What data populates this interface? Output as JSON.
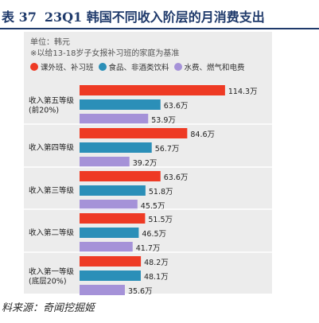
{
  "figure": {
    "label": "表 37",
    "title": "23Q1 韩国不同收入阶层的月消费支出"
  },
  "unit_text": "单位：韩元",
  "note_text": "※以给13-18岁子女报补习班的家庭为基准",
  "source": {
    "label": "料来源：",
    "text": "奇闻挖掘姬"
  },
  "colors": {
    "tutoring": "#ee3a24",
    "food": "#2b8fb8",
    "utilities": "#a592d8"
  },
  "chart_data": {
    "type": "bar",
    "orientation": "horizontal",
    "categories": [
      [
        "收入第五等级",
        "(前20%)"
      ],
      [
        "收入第四等级"
      ],
      [
        "收入第三等级"
      ],
      [
        "收入第二等级"
      ],
      [
        "收入第一等级",
        "(底层20%)"
      ]
    ],
    "series": [
      {
        "name": "课外班、补习班",
        "values": [
          114.3,
          84.6,
          63.6,
          51.5,
          48.2
        ],
        "labels": [
          "114.3万",
          "84.6万",
          "63.6万",
          "51.5万",
          "48.2万"
        ]
      },
      {
        "name": "食品、非酒类饮料",
        "values": [
          63.6,
          56.7,
          51.8,
          46.5,
          48.1
        ],
        "labels": [
          "63.6万",
          "56.7万",
          "51.8万",
          "46.5万",
          "48.1万"
        ]
      },
      {
        "name": "水费、燃气和电费",
        "values": [
          53.9,
          39.2,
          45.5,
          41.7,
          35.6
        ],
        "labels": [
          "53.9万",
          "39.2万",
          "45.5万",
          "41.7万",
          "35.6万"
        ]
      }
    ],
    "unit": "万",
    "legend_position": "top",
    "grid": false
  }
}
